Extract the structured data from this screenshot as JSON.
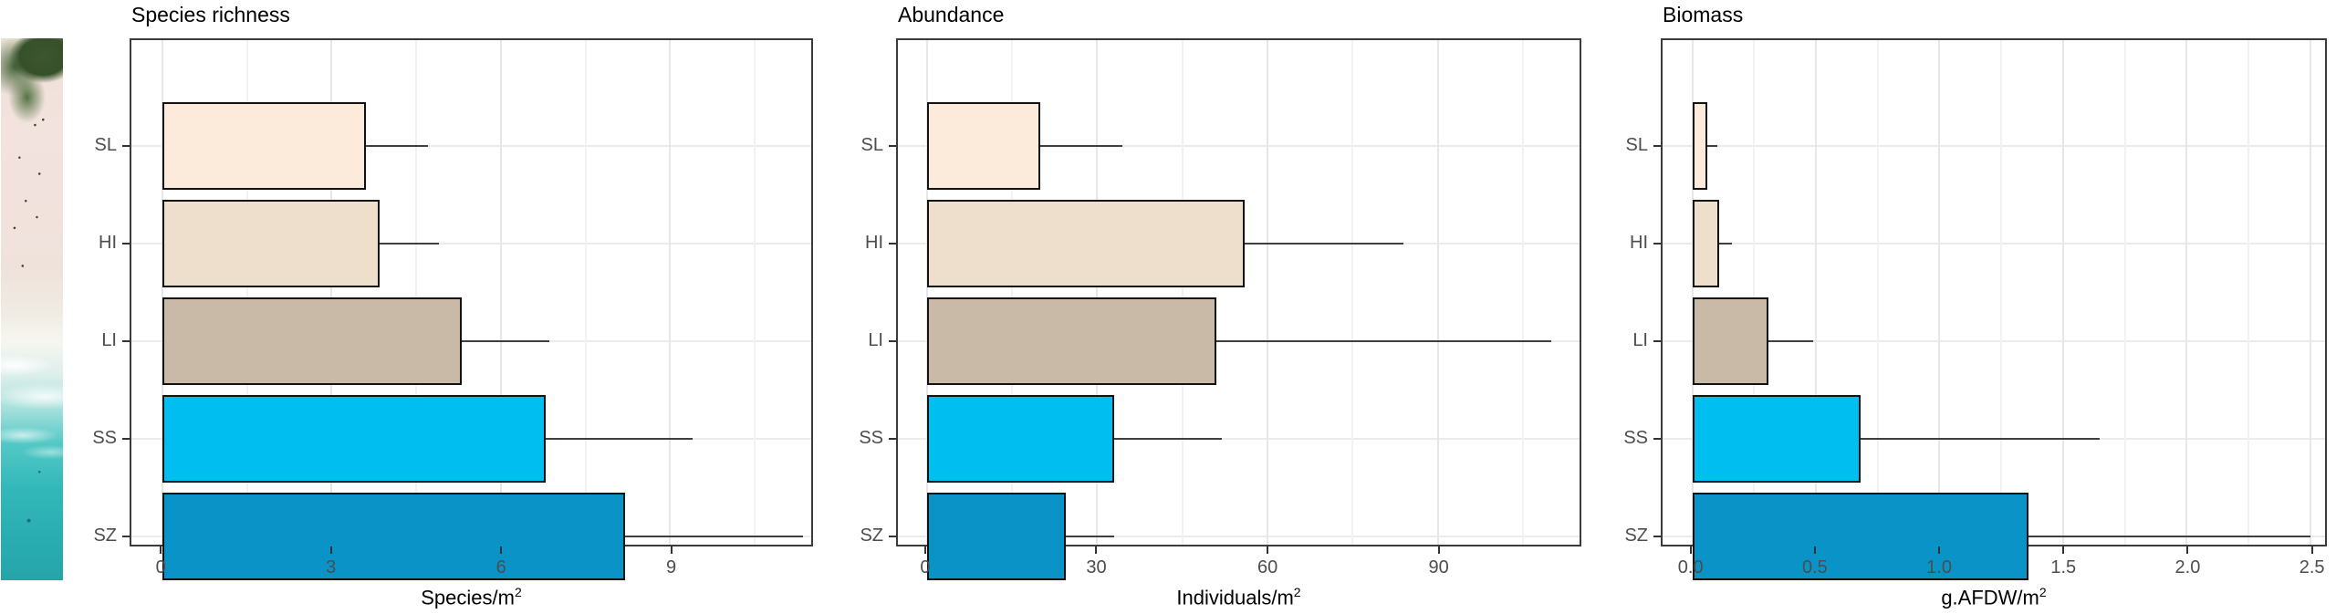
{
  "figure": {
    "description": "Three horizontal bar charts with error bars comparing beach zones",
    "categories": [
      "SL",
      "HI",
      "LI",
      "SS",
      "SZ"
    ],
    "bar_colors": [
      "#FCEBDA",
      "#EDDFCB",
      "#C8BAA7",
      "#00BEF0",
      "#0A93C6"
    ],
    "error_color": "#3f3f3f",
    "panel_border_color": "#3b3b3b",
    "grid_color": "#ebebeb",
    "tick_label_color": "#4d4d4d"
  },
  "beach_strip": {
    "name": "aerial-beach-photo",
    "colors": {
      "foliage": "#3d5630",
      "sand": "#f2e2dd",
      "foam": "#f6f6f0",
      "sea": "#2aadb1"
    }
  },
  "chart_data": [
    {
      "type": "bar",
      "orientation": "horizontal",
      "title": "Species richness",
      "xlabel": "Species/m²",
      "xlabel_base": "Species/m",
      "xlabel_sup": "2",
      "categories": [
        "SL",
        "HI",
        "LI",
        "SS",
        "SZ"
      ],
      "values": [
        3.6,
        3.85,
        5.3,
        6.8,
        8.2
      ],
      "error_upper": [
        4.7,
        4.9,
        6.85,
        9.4,
        11.35
      ],
      "xticks": [
        0,
        3,
        6,
        9
      ],
      "xtick_labels": [
        "0",
        "3",
        "6",
        "9"
      ],
      "xminor": [
        1.5,
        4.5,
        7.5,
        10.5
      ],
      "xlim": [
        -0.55,
        11.5
      ],
      "grid": true,
      "legend": false
    },
    {
      "type": "bar",
      "orientation": "horizontal",
      "title": "Abundance",
      "xlabel": "Individuals/m²",
      "xlabel_base": "Individuals/m",
      "xlabel_sup": "2",
      "categories": [
        "SL",
        "HI",
        "LI",
        "SS",
        "SZ"
      ],
      "values": [
        20,
        56,
        51,
        33,
        24.5
      ],
      "error_upper": [
        34.5,
        84,
        110,
        52,
        33
      ],
      "xticks": [
        0,
        30,
        60,
        90
      ],
      "xtick_labels": [
        "0",
        "30",
        "60",
        "90"
      ],
      "xminor": [
        15,
        45,
        75,
        105
      ],
      "xlim": [
        -5.1,
        115
      ],
      "grid": true,
      "legend": false
    },
    {
      "type": "bar",
      "orientation": "horizontal",
      "title": "Biomass",
      "xlabel": "g.AFDW/m²",
      "xlabel_base": "g.AFDW/m",
      "xlabel_sup": "2",
      "categories": [
        "SL",
        "HI",
        "LI",
        "SS",
        "SZ"
      ],
      "values": [
        0.06,
        0.11,
        0.31,
        0.68,
        1.36
      ],
      "error_upper": [
        0.1,
        0.16,
        0.49,
        1.65,
        2.5
      ],
      "xticks": [
        0,
        0.5,
        1,
        1.5,
        2,
        2.5
      ],
      "xtick_labels": [
        "0.0",
        "0.5",
        "1.0",
        "1.5",
        "2.0",
        "2.5"
      ],
      "xminor": [
        0.25,
        0.75,
        1.25,
        1.75,
        2.25
      ],
      "xlim": [
        -0.12,
        2.56
      ],
      "grid": true,
      "legend": false
    }
  ]
}
